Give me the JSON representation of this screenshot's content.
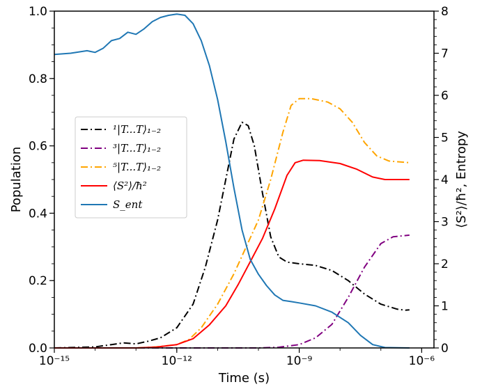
{
  "chart_data": {
    "type": "line",
    "xlabel": "Time (s)",
    "ylabel_left": "Population",
    "ylabel_right": "⟨S²⟩/ħ², Entropy",
    "xscale": "log",
    "xlim": [
      1e-15,
      2e-06
    ],
    "ylim_left": [
      0,
      1.0
    ],
    "ylim_right": [
      0,
      8
    ],
    "x_ticks": [
      {
        "value": 1e-15,
        "label": "10⁻¹⁵"
      },
      {
        "value": 1e-12,
        "label": "10⁻¹²"
      },
      {
        "value": 1e-09,
        "label": "10⁻⁹"
      },
      {
        "value": 1e-06,
        "label": "10⁻⁶"
      }
    ],
    "y_ticks_left": [
      "0.0",
      "0.2",
      "0.4",
      "0.6",
      "0.8",
      "1.0"
    ],
    "y_ticks_right": [
      "0",
      "1",
      "2",
      "3",
      "4",
      "5",
      "6",
      "7",
      "8"
    ],
    "legend_position": "center-left",
    "grid": false,
    "series": [
      {
        "name": "¹|T...T⟩₁₋₂",
        "axis": "left",
        "color": "#000000",
        "style": "dashdot",
        "points": [
          [
            -15,
            0
          ],
          [
            -14,
            0.003
          ],
          [
            -13.6,
            0.01
          ],
          [
            -13.3,
            0.015
          ],
          [
            -13,
            0.012
          ],
          [
            -12.7,
            0.02
          ],
          [
            -12.4,
            0.03
          ],
          [
            -12,
            0.06
          ],
          [
            -11.6,
            0.13
          ],
          [
            -11.3,
            0.24
          ],
          [
            -11,
            0.38
          ],
          [
            -10.8,
            0.5
          ],
          [
            -10.6,
            0.62
          ],
          [
            -10.4,
            0.67
          ],
          [
            -10.25,
            0.66
          ],
          [
            -10.1,
            0.6
          ],
          [
            -9.9,
            0.46
          ],
          [
            -9.7,
            0.33
          ],
          [
            -9.5,
            0.27
          ],
          [
            -9.3,
            0.255
          ],
          [
            -9,
            0.25
          ],
          [
            -8.6,
            0.245
          ],
          [
            -8.2,
            0.23
          ],
          [
            -7.8,
            0.2
          ],
          [
            -7.4,
            0.16
          ],
          [
            -7,
            0.13
          ],
          [
            -6.6,
            0.115
          ],
          [
            -6.4,
            0.112
          ],
          [
            -6.3,
            0.113
          ]
        ]
      },
      {
        "name": "³|T...T⟩₁₋₂",
        "axis": "left",
        "color": "#800080",
        "style": "dashdot",
        "points": [
          [
            -15,
            0
          ],
          [
            -10,
            0
          ],
          [
            -9.5,
            0.002
          ],
          [
            -9,
            0.01
          ],
          [
            -8.6,
            0.03
          ],
          [
            -8.2,
            0.07
          ],
          [
            -7.8,
            0.15
          ],
          [
            -7.4,
            0.24
          ],
          [
            -7,
            0.31
          ],
          [
            -6.7,
            0.33
          ],
          [
            -6.3,
            0.335
          ]
        ]
      },
      {
        "name": "⁵|T...T⟩₁₋₂",
        "axis": "left",
        "color": "#FFA500",
        "style": "dashdot",
        "points": [
          [
            -15,
            0
          ],
          [
            -13,
            0
          ],
          [
            -12.5,
            0.003
          ],
          [
            -12,
            0.01
          ],
          [
            -11.7,
            0.025
          ],
          [
            -11.4,
            0.06
          ],
          [
            -11,
            0.13
          ],
          [
            -10.6,
            0.22
          ],
          [
            -10.3,
            0.3
          ],
          [
            -10,
            0.38
          ],
          [
            -9.7,
            0.5
          ],
          [
            -9.4,
            0.64
          ],
          [
            -9.2,
            0.72
          ],
          [
            -9,
            0.74
          ],
          [
            -8.7,
            0.74
          ],
          [
            -8.3,
            0.73
          ],
          [
            -8,
            0.71
          ],
          [
            -7.7,
            0.67
          ],
          [
            -7.4,
            0.61
          ],
          [
            -7.1,
            0.57
          ],
          [
            -6.8,
            0.555
          ],
          [
            -6.3,
            0.55
          ]
        ]
      },
      {
        "name": "⟨S²⟩/ħ²",
        "axis": "right",
        "color": "#FF0000",
        "style": "solid",
        "points": [
          [
            -15,
            0
          ],
          [
            -13,
            0
          ],
          [
            -12.5,
            0.02
          ],
          [
            -12,
            0.08
          ],
          [
            -11.6,
            0.22
          ],
          [
            -11.2,
            0.55
          ],
          [
            -10.8,
            1.0
          ],
          [
            -10.5,
            1.5
          ],
          [
            -10.2,
            2.05
          ],
          [
            -9.9,
            2.6
          ],
          [
            -9.6,
            3.3
          ],
          [
            -9.3,
            4.1
          ],
          [
            -9.1,
            4.4
          ],
          [
            -8.9,
            4.46
          ],
          [
            -8.5,
            4.45
          ],
          [
            -8,
            4.38
          ],
          [
            -7.6,
            4.25
          ],
          [
            -7.2,
            4.06
          ],
          [
            -6.9,
            4.0
          ],
          [
            -6.3,
            4.0
          ]
        ]
      },
      {
        "name": "S_ent",
        "axis": "right",
        "color": "#1F77B4",
        "style": "solid",
        "points": [
          [
            -15,
            6.97
          ],
          [
            -14.6,
            7.0
          ],
          [
            -14.2,
            7.06
          ],
          [
            -14,
            7.02
          ],
          [
            -13.8,
            7.12
          ],
          [
            -13.6,
            7.3
          ],
          [
            -13.4,
            7.35
          ],
          [
            -13.2,
            7.5
          ],
          [
            -13,
            7.45
          ],
          [
            -12.8,
            7.58
          ],
          [
            -12.6,
            7.75
          ],
          [
            -12.4,
            7.85
          ],
          [
            -12.2,
            7.9
          ],
          [
            -12,
            7.93
          ],
          [
            -11.8,
            7.9
          ],
          [
            -11.6,
            7.7
          ],
          [
            -11.4,
            7.3
          ],
          [
            -11.2,
            6.7
          ],
          [
            -11,
            5.9
          ],
          [
            -10.8,
            4.9
          ],
          [
            -10.6,
            3.8
          ],
          [
            -10.4,
            2.8
          ],
          [
            -10.2,
            2.1
          ],
          [
            -10,
            1.75
          ],
          [
            -9.8,
            1.48
          ],
          [
            -9.6,
            1.26
          ],
          [
            -9.4,
            1.13
          ],
          [
            -9.2,
            1.1
          ],
          [
            -9,
            1.07
          ],
          [
            -8.6,
            1.0
          ],
          [
            -8.2,
            0.85
          ],
          [
            -7.8,
            0.6
          ],
          [
            -7.5,
            0.3
          ],
          [
            -7.2,
            0.08
          ],
          [
            -6.9,
            0.01
          ],
          [
            -6.3,
            0.0
          ]
        ]
      }
    ]
  }
}
